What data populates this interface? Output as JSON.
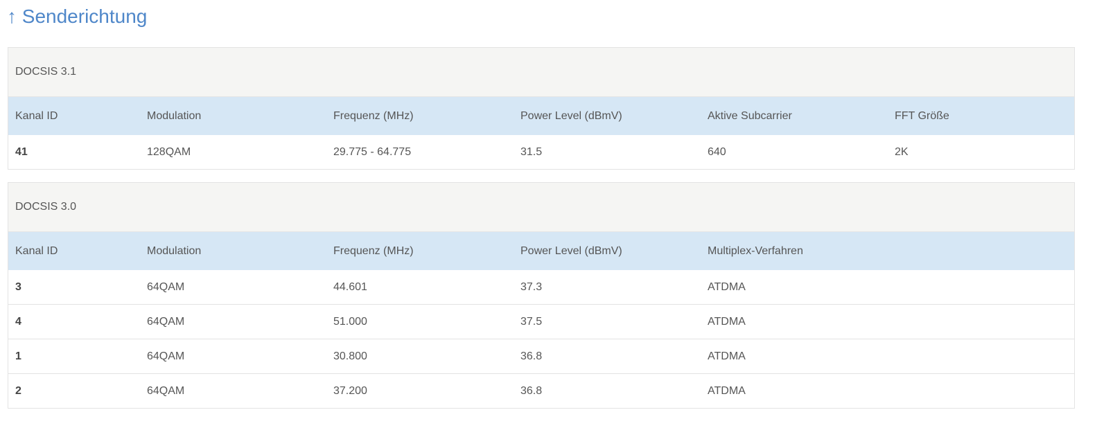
{
  "title": "↑ Senderichtung",
  "docsis31": {
    "caption": "DOCSIS 3.1",
    "headers": [
      "Kanal ID",
      "Modulation",
      "Frequenz (MHz)",
      "Power Level (dBmV)",
      "Aktive Subcarrier",
      "FFT Größe"
    ],
    "rows": [
      [
        "41",
        "128QAM",
        "29.775 - 64.775",
        "31.5",
        "640",
        "2K"
      ]
    ]
  },
  "docsis30": {
    "caption": "DOCSIS 3.0",
    "headers": [
      "Kanal ID",
      "Modulation",
      "Frequenz (MHz)",
      "Power Level (dBmV)",
      "Multiplex-Verfahren"
    ],
    "rows": [
      [
        "3",
        "64QAM",
        "44.601",
        "37.3",
        "ATDMA"
      ],
      [
        "4",
        "64QAM",
        "51.000",
        "37.5",
        "ATDMA"
      ],
      [
        "1",
        "64QAM",
        "30.800",
        "36.8",
        "ATDMA"
      ],
      [
        "2",
        "64QAM",
        "37.200",
        "36.8",
        "ATDMA"
      ]
    ]
  }
}
